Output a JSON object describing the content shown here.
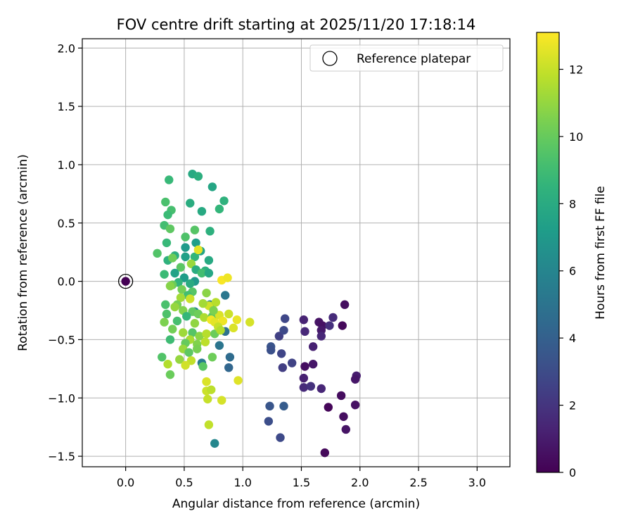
{
  "chart_data": {
    "type": "scatter",
    "title": "FOV centre drift starting at 2025/11/20 17:18:14",
    "xlabel": "Angular distance from reference (arcmin)",
    "ylabel": "Rotation from reference (arcmin)",
    "xlim": [
      -0.37,
      3.28
    ],
    "ylim": [
      -1.59,
      2.08
    ],
    "xticks": [
      0.0,
      0.5,
      1.0,
      1.5,
      2.0,
      2.5,
      3.0
    ],
    "xtick_labels": [
      "0.0",
      "0.5",
      "1.0",
      "1.5",
      "2.0",
      "2.5",
      "3.0"
    ],
    "yticks": [
      -1.5,
      -1.0,
      -0.5,
      0.0,
      0.5,
      1.0,
      1.5,
      2.0
    ],
    "ytick_labels": [
      "−1.5",
      "−1.0",
      "−0.5",
      "0.0",
      "0.5",
      "1.0",
      "1.5",
      "2.0"
    ],
    "grid": true,
    "colormap": "viridis",
    "colorbar": {
      "label": "Hours from first FF file",
      "min": 0,
      "max": 13.1,
      "ticks": [
        0,
        2,
        4,
        6,
        8,
        10,
        12
      ],
      "tick_labels": [
        "0",
        "2",
        "4",
        "6",
        "8",
        "10",
        "12"
      ]
    },
    "legend": {
      "position": "top-right",
      "entries": [
        {
          "label": "Reference platepar",
          "marker": "open-circle"
        }
      ]
    },
    "reference_point": {
      "x": 0.0,
      "y": 0.0,
      "c": 0.0
    },
    "points": [
      {
        "x": 1.87,
        "y": -0.2,
        "c": 0.5
      },
      {
        "x": 1.65,
        "y": -0.35,
        "c": 0.7
      },
      {
        "x": 1.52,
        "y": -0.33,
        "c": 1.3
      },
      {
        "x": 1.68,
        "y": -0.38,
        "c": 0.6
      },
      {
        "x": 1.77,
        "y": -0.31,
        "c": 1.6
      },
      {
        "x": 1.85,
        "y": -0.38,
        "c": 0.3
      },
      {
        "x": 1.67,
        "y": -0.42,
        "c": 0.9
      },
      {
        "x": 1.74,
        "y": -0.38,
        "c": 1.8
      },
      {
        "x": 1.53,
        "y": -0.43,
        "c": 1.5
      },
      {
        "x": 1.67,
        "y": -0.47,
        "c": 1.4
      },
      {
        "x": 1.6,
        "y": -0.56,
        "c": 1.2
      },
      {
        "x": 1.53,
        "y": -0.73,
        "c": 0.5
      },
      {
        "x": 1.6,
        "y": -0.71,
        "c": 0.8
      },
      {
        "x": 1.52,
        "y": -0.83,
        "c": 1.2
      },
      {
        "x": 1.52,
        "y": -0.91,
        "c": 1.6
      },
      {
        "x": 1.58,
        "y": -0.9,
        "c": 1.9
      },
      {
        "x": 1.67,
        "y": -0.92,
        "c": 1.4
      },
      {
        "x": 1.97,
        "y": -0.81,
        "c": 1.1
      },
      {
        "x": 1.96,
        "y": -0.84,
        "c": 0.8
      },
      {
        "x": 1.84,
        "y": -0.98,
        "c": 0.4
      },
      {
        "x": 1.96,
        "y": -1.06,
        "c": 0.6
      },
      {
        "x": 1.73,
        "y": -1.08,
        "c": 0.2
      },
      {
        "x": 1.86,
        "y": -1.16,
        "c": 0.5
      },
      {
        "x": 1.88,
        "y": -1.27,
        "c": 0.7
      },
      {
        "x": 1.7,
        "y": -1.47,
        "c": 0.3
      },
      {
        "x": 1.36,
        "y": -0.32,
        "c": 2.8
      },
      {
        "x": 1.31,
        "y": -0.47,
        "c": 2.5
      },
      {
        "x": 1.35,
        "y": -0.42,
        "c": 2.9
      },
      {
        "x": 1.24,
        "y": -0.56,
        "c": 3.4
      },
      {
        "x": 1.24,
        "y": -0.59,
        "c": 3.2
      },
      {
        "x": 1.33,
        "y": -0.62,
        "c": 2.7
      },
      {
        "x": 1.42,
        "y": -0.7,
        "c": 2.6
      },
      {
        "x": 1.34,
        "y": -0.74,
        "c": 2.4
      },
      {
        "x": 1.23,
        "y": -1.07,
        "c": 3.5
      },
      {
        "x": 1.35,
        "y": -1.07,
        "c": 3.8
      },
      {
        "x": 1.22,
        "y": -1.2,
        "c": 3.1
      },
      {
        "x": 1.32,
        "y": -1.34,
        "c": 2.9
      },
      {
        "x": 0.89,
        "y": -0.65,
        "c": 4.6
      },
      {
        "x": 0.88,
        "y": -0.74,
        "c": 4.3
      },
      {
        "x": 0.76,
        "y": -1.39,
        "c": 6.1
      },
      {
        "x": 0.85,
        "y": -0.12,
        "c": 5.2
      },
      {
        "x": 0.85,
        "y": -0.43,
        "c": 4.9
      },
      {
        "x": 0.8,
        "y": -0.55,
        "c": 5.1
      },
      {
        "x": 0.65,
        "y": -0.7,
        "c": 5.5
      },
      {
        "x": 0.72,
        "y": -0.2,
        "c": 5.9
      },
      {
        "x": 0.59,
        "y": -0.26,
        "c": 6.2
      },
      {
        "x": 0.57,
        "y": 0.92,
        "c": 7.9
      },
      {
        "x": 0.62,
        "y": 0.9,
        "c": 8.2
      },
      {
        "x": 0.74,
        "y": 0.81,
        "c": 7.7
      },
      {
        "x": 0.84,
        "y": 0.69,
        "c": 8.4
      },
      {
        "x": 0.55,
        "y": 0.67,
        "c": 8.1
      },
      {
        "x": 0.8,
        "y": 0.62,
        "c": 8.6
      },
      {
        "x": 0.65,
        "y": 0.6,
        "c": 7.9
      },
      {
        "x": 0.72,
        "y": 0.43,
        "c": 8.3
      },
      {
        "x": 0.37,
        "y": 0.87,
        "c": 8.8
      },
      {
        "x": 0.34,
        "y": 0.68,
        "c": 9.3
      },
      {
        "x": 0.39,
        "y": 0.61,
        "c": 9.2
      },
      {
        "x": 0.36,
        "y": 0.57,
        "c": 8.9
      },
      {
        "x": 0.33,
        "y": 0.48,
        "c": 9.1
      },
      {
        "x": 0.38,
        "y": 0.45,
        "c": 9.8
      },
      {
        "x": 0.59,
        "y": 0.44,
        "c": 9.6
      },
      {
        "x": 0.51,
        "y": 0.38,
        "c": 9.4
      },
      {
        "x": 0.35,
        "y": 0.33,
        "c": 8.8
      },
      {
        "x": 0.6,
        "y": 0.33,
        "c": 7.3
      },
      {
        "x": 0.51,
        "y": 0.29,
        "c": 7.1
      },
      {
        "x": 0.27,
        "y": 0.24,
        "c": 9.5
      },
      {
        "x": 0.64,
        "y": 0.26,
        "c": 7.6
      },
      {
        "x": 0.42,
        "y": 0.22,
        "c": 8.2
      },
      {
        "x": 0.51,
        "y": 0.21,
        "c": 7.4
      },
      {
        "x": 0.59,
        "y": 0.21,
        "c": 8.6
      },
      {
        "x": 0.71,
        "y": 0.18,
        "c": 7.9
      },
      {
        "x": 0.36,
        "y": 0.18,
        "c": 8.4
      },
      {
        "x": 0.4,
        "y": 0.2,
        "c": 10.2
      },
      {
        "x": 0.56,
        "y": 0.15,
        "c": 11.1
      },
      {
        "x": 0.47,
        "y": 0.12,
        "c": 9.7
      },
      {
        "x": 0.6,
        "y": 0.1,
        "c": 8.1
      },
      {
        "x": 0.68,
        "y": 0.09,
        "c": 8.3
      },
      {
        "x": 0.65,
        "y": 0.07,
        "c": 9.1
      },
      {
        "x": 0.71,
        "y": 0.07,
        "c": 7.8
      },
      {
        "x": 0.42,
        "y": 0.07,
        "c": 7.5
      },
      {
        "x": 0.33,
        "y": 0.06,
        "c": 8.9
      },
      {
        "x": 0.5,
        "y": 0.03,
        "c": 7.2
      },
      {
        "x": 0.59,
        "y": 0.0,
        "c": 7.0
      },
      {
        "x": 0.55,
        "y": -0.02,
        "c": 8.0
      },
      {
        "x": 0.45,
        "y": -0.01,
        "c": 8.5
      },
      {
        "x": 0.4,
        "y": -0.03,
        "c": 10.1
      },
      {
        "x": 0.38,
        "y": -0.04,
        "c": 10.7
      },
      {
        "x": 0.48,
        "y": -0.07,
        "c": 10.3
      },
      {
        "x": 0.57,
        "y": -0.09,
        "c": 9.6
      },
      {
        "x": 0.69,
        "y": -0.1,
        "c": 10.8
      },
      {
        "x": 0.53,
        "y": -0.12,
        "c": 9.1
      },
      {
        "x": 0.47,
        "y": -0.14,
        "c": 11.3
      },
      {
        "x": 0.44,
        "y": -0.2,
        "c": 10.4
      },
      {
        "x": 0.34,
        "y": -0.2,
        "c": 9.3
      },
      {
        "x": 0.42,
        "y": -0.22,
        "c": 11.0
      },
      {
        "x": 0.49,
        "y": -0.25,
        "c": 10.6
      },
      {
        "x": 0.57,
        "y": -0.26,
        "c": 9.9
      },
      {
        "x": 0.62,
        "y": -0.28,
        "c": 10.2
      },
      {
        "x": 0.35,
        "y": -0.28,
        "c": 9.4
      },
      {
        "x": 0.52,
        "y": -0.3,
        "c": 8.7
      },
      {
        "x": 0.67,
        "y": -0.31,
        "c": 11.5
      },
      {
        "x": 0.74,
        "y": -0.3,
        "c": 9.8
      },
      {
        "x": 0.44,
        "y": -0.34,
        "c": 9.2
      },
      {
        "x": 0.33,
        "y": -0.35,
        "c": 10.5
      },
      {
        "x": 0.59,
        "y": -0.36,
        "c": 10.9
      },
      {
        "x": 0.4,
        "y": -0.41,
        "c": 10.3
      },
      {
        "x": 0.49,
        "y": -0.44,
        "c": 11.2
      },
      {
        "x": 0.57,
        "y": -0.44,
        "c": 9.6
      },
      {
        "x": 0.63,
        "y": -0.47,
        "c": 10.8
      },
      {
        "x": 0.69,
        "y": -0.45,
        "c": 11.7
      },
      {
        "x": 0.76,
        "y": -0.45,
        "c": 10.1
      },
      {
        "x": 0.38,
        "y": -0.5,
        "c": 9.0
      },
      {
        "x": 0.55,
        "y": -0.5,
        "c": 11.4
      },
      {
        "x": 0.61,
        "y": -0.54,
        "c": 10.6
      },
      {
        "x": 0.68,
        "y": -0.52,
        "c": 11.8
      },
      {
        "x": 0.51,
        "y": -0.53,
        "c": 10.0
      },
      {
        "x": 0.49,
        "y": -0.58,
        "c": 11.1
      },
      {
        "x": 0.61,
        "y": -0.58,
        "c": 10.4
      },
      {
        "x": 0.54,
        "y": -0.61,
        "c": 9.8
      },
      {
        "x": 0.31,
        "y": -0.65,
        "c": 9.5
      },
      {
        "x": 0.74,
        "y": -0.65,
        "c": 10.2
      },
      {
        "x": 0.46,
        "y": -0.67,
        "c": 11.0
      },
      {
        "x": 0.56,
        "y": -0.68,
        "c": 11.9
      },
      {
        "x": 0.36,
        "y": -0.71,
        "c": 11.6
      },
      {
        "x": 0.51,
        "y": -0.72,
        "c": 12.2
      },
      {
        "x": 0.66,
        "y": -0.73,
        "c": 9.7
      },
      {
        "x": 0.38,
        "y": -0.8,
        "c": 10.1
      },
      {
        "x": 0.69,
        "y": -0.86,
        "c": 12.4
      },
      {
        "x": 0.69,
        "y": -0.94,
        "c": 12.1
      },
      {
        "x": 0.73,
        "y": -0.93,
        "c": 11.8
      },
      {
        "x": 0.7,
        "y": -1.01,
        "c": 12.0
      },
      {
        "x": 0.82,
        "y": -1.02,
        "c": 12.3
      },
      {
        "x": 0.71,
        "y": -1.23,
        "c": 11.9
      },
      {
        "x": 0.96,
        "y": -0.85,
        "c": 12.5
      },
      {
        "x": 0.73,
        "y": -0.33,
        "c": 12.9
      },
      {
        "x": 0.76,
        "y": -0.35,
        "c": 12.6
      },
      {
        "x": 0.8,
        "y": -0.29,
        "c": 12.4
      },
      {
        "x": 0.83,
        "y": -0.34,
        "c": 12.8
      },
      {
        "x": 0.88,
        "y": -0.28,
        "c": 12.1
      },
      {
        "x": 0.95,
        "y": -0.33,
        "c": 12.7
      },
      {
        "x": 1.06,
        "y": -0.35,
        "c": 12.3
      },
      {
        "x": 0.79,
        "y": -0.39,
        "c": 12.0
      },
      {
        "x": 0.81,
        "y": -0.42,
        "c": 11.6
      },
      {
        "x": 0.92,
        "y": -0.4,
        "c": 12.4
      },
      {
        "x": 0.82,
        "y": 0.01,
        "c": 13.0
      },
      {
        "x": 0.87,
        "y": 0.03,
        "c": 12.8
      },
      {
        "x": 0.62,
        "y": 0.27,
        "c": 12.6
      },
      {
        "x": 0.71,
        "y": -0.21,
        "c": 12.2
      },
      {
        "x": 0.77,
        "y": -0.18,
        "c": 11.7
      },
      {
        "x": 0.75,
        "y": -0.25,
        "c": 10.5
      },
      {
        "x": 0.66,
        "y": -0.19,
        "c": 11.3
      },
      {
        "x": 0.55,
        "y": -0.15,
        "c": 12.1
      }
    ]
  }
}
